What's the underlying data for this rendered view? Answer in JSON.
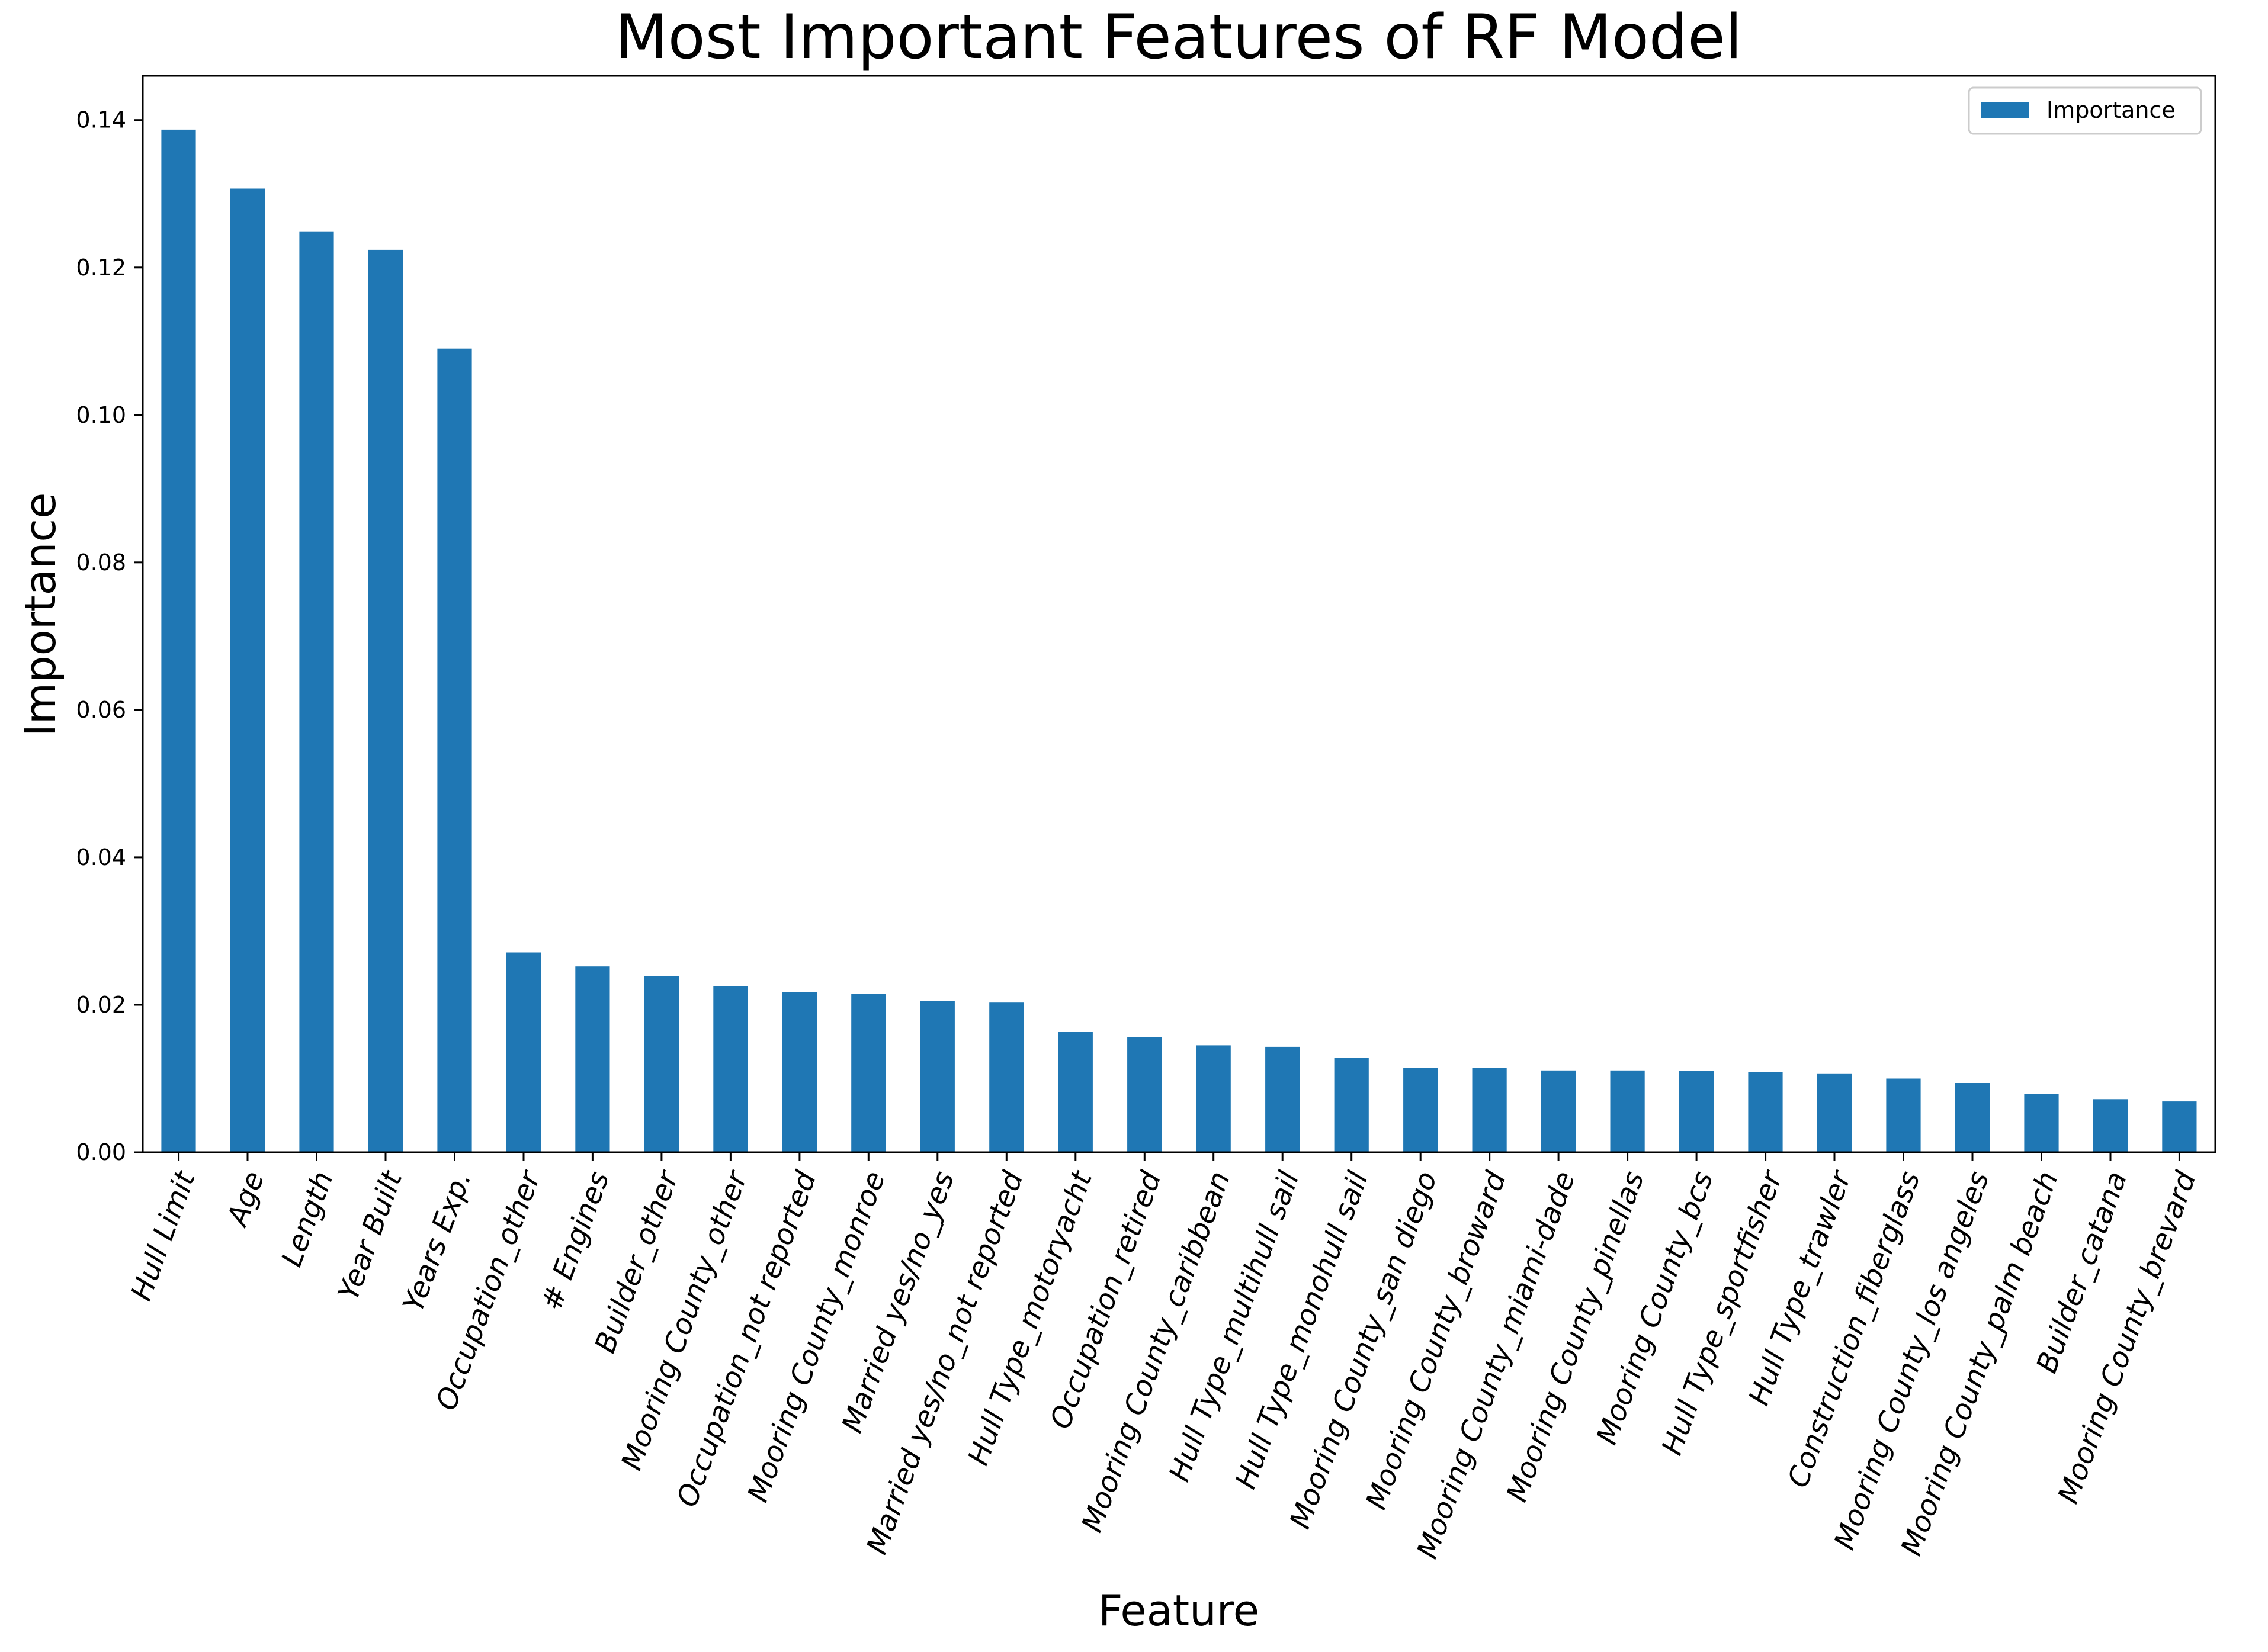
{
  "chart_data": {
    "type": "bar",
    "title": "Most Important Features of RF Model",
    "xlabel": "Feature",
    "ylabel": "Importance",
    "ylim": [
      0,
      0.146
    ],
    "yticks": [
      "0.00",
      "0.02",
      "0.04",
      "0.06",
      "0.08",
      "0.10",
      "0.12",
      "0.14"
    ],
    "grid": false,
    "legend_position": "top-right",
    "bar_color": "#1f77b4",
    "categories": [
      "Hull Limit",
      "Age",
      "Length",
      "Year Built",
      "Years Exp.",
      "Occupation_other",
      "# Engines",
      "Builder_other",
      "Mooring County_other",
      "Occupation_not reported",
      "Mooring County_monroe",
      "Married yes/no_yes",
      "Married yes/no_not reported",
      "Hull Type_motoryacht",
      "Occupation_retired",
      "Mooring County_caribbean",
      "Hull Type_multihull sail",
      "Hull Type_monohull sail",
      "Mooring County_san diego",
      "Mooring County_broward",
      "Mooring County_miami-dade",
      "Mooring County_pinellas",
      "Mooring County_bcs",
      "Hull Type_sportfisher",
      "Hull Type_trawler",
      "Construction_fiberglass",
      "Mooring County_los angeles",
      "Mooring County_palm beach",
      "Builder_catana",
      "Mooring County_brevard"
    ],
    "series": [
      {
        "name": "Importance",
        "values": [
          0.1387,
          0.1307,
          0.1249,
          0.1224,
          0.109,
          0.0271,
          0.0252,
          0.0239,
          0.0225,
          0.0217,
          0.0215,
          0.0205,
          0.0203,
          0.0163,
          0.0156,
          0.0145,
          0.0143,
          0.0128,
          0.0114,
          0.0114,
          0.0111,
          0.0111,
          0.011,
          0.0109,
          0.0107,
          0.01,
          0.0094,
          0.0079,
          0.0072,
          0.0069
        ]
      }
    ]
  }
}
